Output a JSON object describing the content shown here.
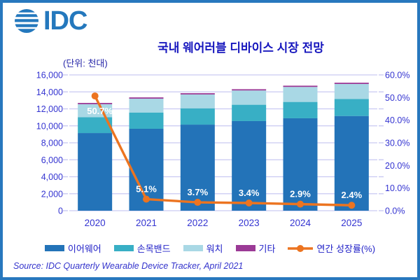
{
  "page": {
    "logo_text": "IDC",
    "source_note": "Source: IDC Quarterly Wearable Device Tracker, April 2021"
  },
  "chart_data": {
    "type": "bar",
    "subtype": "stacked-column-with-growth-line",
    "title": "국내 웨어러블 디바이스 시장 전망",
    "unit_label": "(단위: 천대)",
    "categories": [
      "2020",
      "2021",
      "2022",
      "2023",
      "2024",
      "2025"
    ],
    "series": [
      {
        "name": "이어웨어",
        "color": "#2373B8",
        "values": [
          9150,
          9650,
          10140,
          10560,
          10890,
          11160
        ]
      },
      {
        "name": "손목밴드",
        "color": "#38AFC5",
        "values": [
          1870,
          1920,
          1925,
          1925,
          1925,
          2010
        ]
      },
      {
        "name": "워치",
        "color": "#A9D8E5",
        "values": [
          1530,
          1630,
          1630,
          1680,
          1765,
          1760
        ]
      },
      {
        "name": "기타",
        "color": "#9B3A96",
        "values": [
          150,
          150,
          150,
          150,
          150,
          150
        ]
      }
    ],
    "estimated_totals": [
      12700,
      13350,
      13845,
      14315,
      14730,
      15080
    ],
    "line_series": {
      "name": "연간 성장률(%)",
      "color": "#EC7420",
      "values": [
        50.7,
        5.1,
        3.7,
        3.4,
        2.9,
        2.4
      ],
      "labels": [
        "50.7%",
        "5.1%",
        "3.7%",
        "3.4%",
        "2.9%",
        "2.4%"
      ]
    },
    "left_axis": {
      "min": 0,
      "max": 16000,
      "step": 2000
    },
    "right_axis": {
      "min": 0,
      "max": 60,
      "step": 10
    },
    "grid": true,
    "legend_position": "bottom"
  },
  "colors": {
    "frame_border": "#2878BE",
    "title_text": "#1717BE",
    "axis_text": "#3434D1",
    "gridline": "#C9C9F2",
    "logo_blue": "#2478BD",
    "data_label_text": "#FFFFFF"
  }
}
